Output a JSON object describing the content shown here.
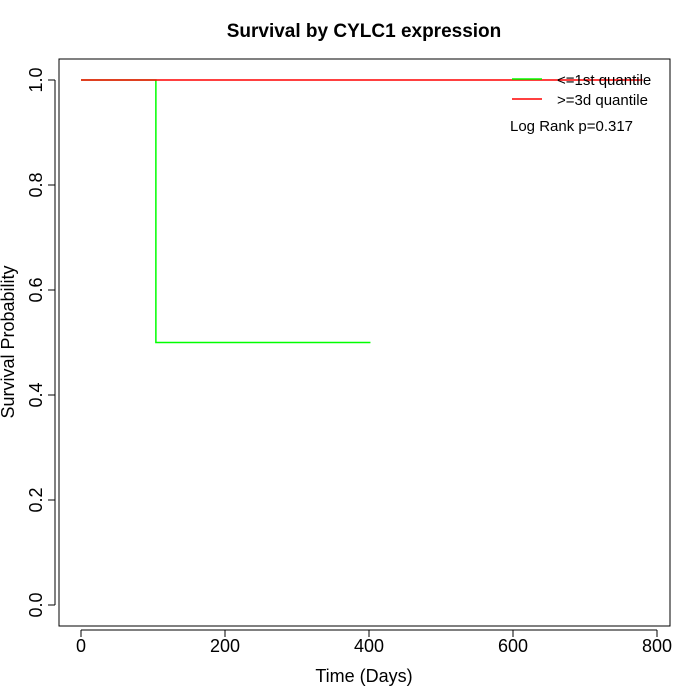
{
  "chart_data": {
    "type": "line",
    "title": "Survival by CYLC1 expression",
    "xlabel": "Time (Days)",
    "ylabel": "Survival Probability",
    "xlim": [
      0,
      800
    ],
    "ylim": [
      0,
      1
    ],
    "x_ticks": [
      0,
      200,
      400,
      600,
      800
    ],
    "y_ticks": [
      0.0,
      0.2,
      0.4,
      0.6,
      0.8,
      1.0
    ],
    "x_tick_labels": [
      "0",
      "200",
      "400",
      "600",
      "800"
    ],
    "y_tick_labels": [
      "0.0",
      "0.2",
      "0.4",
      "0.6",
      "0.8",
      "1.0"
    ],
    "grid": false,
    "legend_position": "top-right",
    "series": [
      {
        "name": "<=1st quantile",
        "color": "#00ff00",
        "step": true,
        "x": [
          0,
          104,
          104,
          402
        ],
        "y": [
          1.0,
          1.0,
          0.5,
          0.5
        ]
      },
      {
        "name": ">=3d quantile",
        "color": "#ff0000",
        "step": true,
        "x": [
          0,
          780
        ],
        "y": [
          1.0,
          1.0
        ]
      }
    ],
    "annotations": [
      "Log Rank p=0.317"
    ]
  }
}
